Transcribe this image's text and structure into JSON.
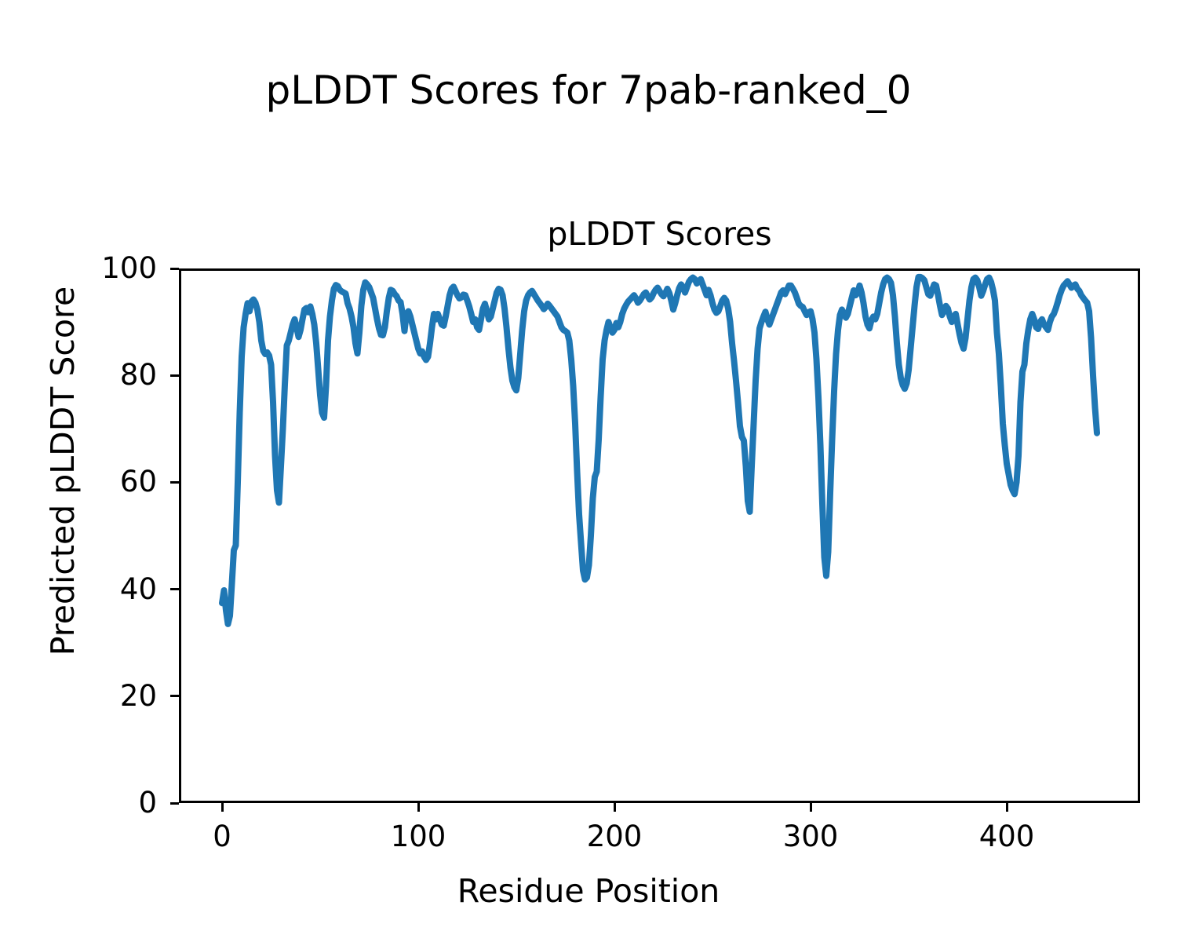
{
  "figure": {
    "suptitle": "pLDDT Scores for 7pab-ranked_0",
    "axes_title": "pLDDT Scores",
    "xlabel": "Residue Position",
    "ylabel": "Predicted pLDDT Score"
  },
  "chart_data": {
    "type": "line",
    "title": "pLDDT Scores",
    "suptitle": "pLDDT Scores for 7pab-ranked_0",
    "xlabel": "Residue Position",
    "ylabel": "Predicted pLDDT Score",
    "line_color": "#1f77b4",
    "background": "#ffffff",
    "grid": false,
    "legend": false,
    "xlim": [
      -22,
      468
    ],
    "ylim": [
      0,
      100
    ],
    "x_ticks": [
      0,
      100,
      200,
      300,
      400
    ],
    "y_ticks": [
      0,
      20,
      40,
      60,
      80,
      100
    ],
    "x_start": 0,
    "x_step": 1,
    "values": [
      37.4,
      39.8,
      36.0,
      33.5,
      35.0,
      41.0,
      47.3,
      48.2,
      60.0,
      73.0,
      83.5,
      89.0,
      91.5,
      93.5,
      92.0,
      93.8,
      94.2,
      93.6,
      92.3,
      90.0,
      86.5,
      84.6,
      84.0,
      84.3,
      83.7,
      82.0,
      75.0,
      65.0,
      58.5,
      56.2,
      63.0,
      70.0,
      78.3,
      85.6,
      86.5,
      88.0,
      89.5,
      90.5,
      89.0,
      87.2,
      88.5,
      90.5,
      92.3,
      92.6,
      91.8,
      92.9,
      91.5,
      89.5,
      86.0,
      81.2,
      76.3,
      73.0,
      72.1,
      78.0,
      86.5,
      91.0,
      94.0,
      96.2,
      96.9,
      96.7,
      96.0,
      95.7,
      95.5,
      95.3,
      93.5,
      92.5,
      91.0,
      89.0,
      86.0,
      84.1,
      88.0,
      93.0,
      96.0,
      97.4,
      97.0,
      96.5,
      95.5,
      94.5,
      92.5,
      90.5,
      88.8,
      87.6,
      87.5,
      89.0,
      92.0,
      94.5,
      96.0,
      95.8,
      95.2,
      94.8,
      94.0,
      93.7,
      91.5,
      88.3,
      91.5,
      92.0,
      91.0,
      89.5,
      88.0,
      86.5,
      85.0,
      84.1,
      84.5,
      83.5,
      82.9,
      83.5,
      86.0,
      89.0,
      91.5,
      90.5,
      91.5,
      90.5,
      89.5,
      89.3,
      91.0,
      93.0,
      95.0,
      96.2,
      96.6,
      95.8,
      95.0,
      94.4,
      94.6,
      95.1,
      95.0,
      94.0,
      92.9,
      91.5,
      90.0,
      90.5,
      89.0,
      88.5,
      90.5,
      92.5,
      93.4,
      92.0,
      90.5,
      91.0,
      92.5,
      94.0,
      95.5,
      96.2,
      96.0,
      95.0,
      92.5,
      89.0,
      85.0,
      81.5,
      79.0,
      77.8,
      77.2,
      79.5,
      84.0,
      88.5,
      92.0,
      94.0,
      95.0,
      95.5,
      95.8,
      95.2,
      94.6,
      94.0,
      93.5,
      93.0,
      92.4,
      92.8,
      93.4,
      93.0,
      92.5,
      92.0,
      91.5,
      91.0,
      90.0,
      89.0,
      88.5,
      88.3,
      88.0,
      86.5,
      83.0,
      78.0,
      71.0,
      62.0,
      54.0,
      48.7,
      43.5,
      41.8,
      42.2,
      44.5,
      50.0,
      57.0,
      61.0,
      62.0,
      68.0,
      76.0,
      83.0,
      86.5,
      88.5,
      90.0,
      89.0,
      88.0,
      88.5,
      89.8,
      89.0,
      90.0,
      91.5,
      92.5,
      93.2,
      93.8,
      94.2,
      94.6,
      95.0,
      94.4,
      93.6,
      94.0,
      94.6,
      95.2,
      95.5,
      94.8,
      94.2,
      94.6,
      95.4,
      96.0,
      96.4,
      95.8,
      95.2,
      94.8,
      95.4,
      96.2,
      95.4,
      94.0,
      92.3,
      93.5,
      95.0,
      96.3,
      97.0,
      96.5,
      95.5,
      96.5,
      97.5,
      98.0,
      98.3,
      98.0,
      97.2,
      97.6,
      98.0,
      97.0,
      96.0,
      95.0,
      96.0,
      95.0,
      93.5,
      92.3,
      91.7,
      92.0,
      93.0,
      94.0,
      94.5,
      94.0,
      92.5,
      90.0,
      86.0,
      82.7,
      79.0,
      75.0,
      70.5,
      68.5,
      67.8,
      63.0,
      56.5,
      54.5,
      63.0,
      71.0,
      79.0,
      85.0,
      88.8,
      90.0,
      91.0,
      91.9,
      90.5,
      89.5,
      90.5,
      91.5,
      92.5,
      93.5,
      94.5,
      95.5,
      95.9,
      95.2,
      96.0,
      96.8,
      96.8,
      96.2,
      95.5,
      94.5,
      93.4,
      93.0,
      92.8,
      92.0,
      91.3,
      91.8,
      92.0,
      90.5,
      88.0,
      83.0,
      76.0,
      67.0,
      56.0,
      46.0,
      42.5,
      47.0,
      58.0,
      68.0,
      77.0,
      84.0,
      88.5,
      91.3,
      92.3,
      91.5,
      90.8,
      91.5,
      93.0,
      94.5,
      95.9,
      95.0,
      95.5,
      96.8,
      95.5,
      93.5,
      91.0,
      89.5,
      88.8,
      90.3,
      91.0,
      90.5,
      91.5,
      93.5,
      95.5,
      97.0,
      98.0,
      98.3,
      98.0,
      97.3,
      95.0,
      91.0,
      86.0,
      82.0,
      79.5,
      78.2,
      77.5,
      78.5,
      81.0,
      85.0,
      89.0,
      93.0,
      96.5,
      98.4,
      98.4,
      98.2,
      97.8,
      96.5,
      95.2,
      94.9,
      96.0,
      97.0,
      96.8,
      95.0,
      93.0,
      91.3,
      92.0,
      93.0,
      92.5,
      91.0,
      90.0,
      91.0,
      91.5,
      89.5,
      87.6,
      86.0,
      85.0,
      87.0,
      90.5,
      94.0,
      96.5,
      98.0,
      98.3,
      97.8,
      96.5,
      94.9,
      95.8,
      97.0,
      98.0,
      98.3,
      97.5,
      96.0,
      94.0,
      88.0,
      84.0,
      78.0,
      71.0,
      67.0,
      63.5,
      61.5,
      59.5,
      58.5,
      57.8,
      60.0,
      65.0,
      75.0,
      80.7,
      82.0,
      86.0,
      88.5,
      90.5,
      91.5,
      90.5,
      89.0,
      88.7,
      90.0,
      90.5,
      89.5,
      89.0,
      88.5,
      90.0,
      91.0,
      91.5,
      92.5,
      93.7,
      95.0,
      96.0,
      96.8,
      97.2,
      97.6,
      97.0,
      96.4,
      96.8,
      97.0,
      96.2,
      95.8,
      95.0,
      94.5,
      94.0,
      93.6,
      92.0,
      87.0,
      80.0,
      74.0,
      69.2
    ]
  }
}
